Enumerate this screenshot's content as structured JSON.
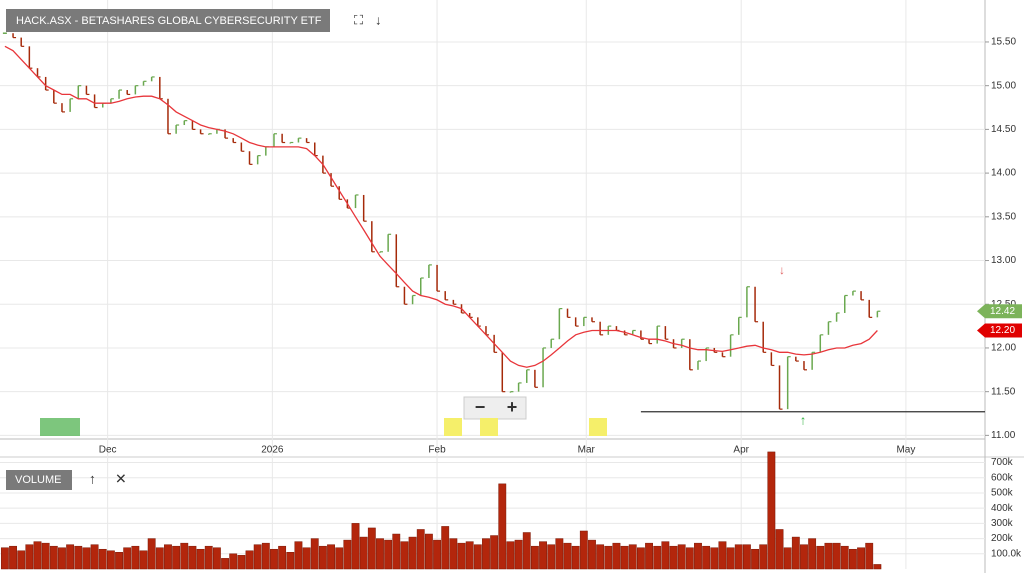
{
  "chart_data": [
    {
      "type": "price-bars",
      "title": "HACK.ASX - BETASHARES GLOBAL CYBERSECURITY ETF",
      "close": [
        15.6,
        15.55,
        15.45,
        15.2,
        15.1,
        14.95,
        14.8,
        14.7,
        14.85,
        15.0,
        14.9,
        14.75,
        14.8,
        14.85,
        14.95,
        14.9,
        15.0,
        15.05,
        15.1,
        14.85,
        14.45,
        14.55,
        14.6,
        14.5,
        14.45,
        14.45,
        14.5,
        14.4,
        14.35,
        14.25,
        14.1,
        14.2,
        14.3,
        14.45,
        14.35,
        14.35,
        14.4,
        14.35,
        14.2,
        14.0,
        13.85,
        13.7,
        13.6,
        13.75,
        13.45,
        13.1,
        13.1,
        13.3,
        12.7,
        12.5,
        12.6,
        12.8,
        12.95,
        12.65,
        12.55,
        12.5,
        12.4,
        12.35,
        12.25,
        12.15,
        11.95,
        11.5,
        11.5,
        11.6,
        11.75,
        11.55,
        12.0,
        12.1,
        12.45,
        12.35,
        12.25,
        12.35,
        12.3,
        12.15,
        12.25,
        12.2,
        12.15,
        12.2,
        12.1,
        12.05,
        12.25,
        12.1,
        12.0,
        12.1,
        11.75,
        11.85,
        12.0,
        11.95,
        11.9,
        12.15,
        12.35,
        12.7,
        12.3,
        11.95,
        11.8,
        11.3,
        11.9,
        11.85,
        11.75,
        11.95,
        12.15,
        12.3,
        12.4,
        12.6,
        12.65,
        12.55,
        12.35,
        12.42
      ],
      "up_color": "#6aa84f",
      "down_color": "#a52a0a",
      "ma": {
        "color": "#e8363b",
        "values": [
          15.45,
          15.4,
          15.3,
          15.2,
          15.1,
          15.0,
          14.95,
          14.9,
          14.9,
          14.85,
          14.85,
          14.8,
          14.8,
          14.8,
          14.82,
          14.85,
          14.87,
          14.88,
          14.88,
          14.85,
          14.78,
          14.7,
          14.65,
          14.6,
          14.55,
          14.52,
          14.5,
          14.48,
          14.45,
          14.4,
          14.35,
          14.32,
          14.3,
          14.3,
          14.3,
          14.3,
          14.3,
          14.28,
          14.2,
          14.1,
          13.95,
          13.8,
          13.65,
          13.5,
          13.35,
          13.2,
          13.05,
          12.95,
          12.85,
          12.75,
          12.65,
          12.6,
          12.58,
          12.55,
          12.5,
          12.48,
          12.45,
          12.35,
          12.25,
          12.15,
          12.05,
          11.95,
          11.85,
          11.8,
          11.78,
          11.8,
          11.85,
          11.92,
          12.0,
          12.08,
          12.15,
          12.18,
          12.2,
          12.2,
          12.2,
          12.2,
          12.18,
          12.15,
          12.12,
          12.1,
          12.1,
          12.08,
          12.05,
          12.03,
          12.0,
          11.98,
          11.98,
          11.97,
          11.96,
          11.98,
          12.0,
          12.02,
          12.03,
          12.0,
          11.98,
          11.95,
          11.95,
          11.93,
          11.92,
          11.93,
          11.95,
          11.98,
          12.0,
          12.0,
          12.03,
          12.05,
          12.1,
          12.2
        ]
      },
      "level": 11.27,
      "level_from": 78,
      "price_labels": [
        {
          "value": 12.42,
          "label": "12.42",
          "color": "#7cb35a"
        },
        {
          "value": 12.2,
          "label": "12.20",
          "color": "#e00000"
        }
      ],
      "xlim": [
        -0.6,
        120.2
      ],
      "xticks": [
        {
          "value": 12.6,
          "label": "Dec"
        },
        {
          "value": 32.8,
          "label": "2026"
        },
        {
          "value": 53,
          "label": "Feb"
        },
        {
          "value": 71.3,
          "label": "Mar"
        },
        {
          "value": 90.3,
          "label": "Apr"
        },
        {
          "value": 110.5,
          "label": "May"
        }
      ],
      "ylim": [
        10.97,
        15.98
      ],
      "yticks": [
        {
          "value": 11,
          "label": "11.00"
        },
        {
          "value": 11.5,
          "label": "11.50"
        },
        {
          "value": 12,
          "label": "12.00"
        },
        {
          "value": 12.5,
          "label": "12.50"
        },
        {
          "value": 13,
          "label": "13.00"
        },
        {
          "value": 13.5,
          "label": "13.50"
        },
        {
          "value": 14,
          "label": "14.00"
        },
        {
          "value": 14.5,
          "label": "14.50"
        },
        {
          "value": 15,
          "label": "15.00"
        },
        {
          "value": 15.5,
          "label": "15.50"
        }
      ],
      "grid": true
    },
    {
      "type": "bar",
      "title": "VOLUME",
      "color": "#b3260c",
      "values": [
        140000,
        150000,
        120000,
        160000,
        180000,
        170000,
        150000,
        140000,
        160000,
        150000,
        140000,
        160000,
        130000,
        120000,
        110000,
        140000,
        150000,
        120000,
        200000,
        140000,
        160000,
        150000,
        170000,
        150000,
        130000,
        150000,
        140000,
        70000,
        100000,
        90000,
        120000,
        160000,
        170000,
        130000,
        150000,
        110000,
        180000,
        140000,
        200000,
        150000,
        160000,
        140000,
        190000,
        300000,
        210000,
        270000,
        200000,
        190000,
        230000,
        180000,
        210000,
        260000,
        230000,
        190000,
        280000,
        200000,
        170000,
        180000,
        160000,
        200000,
        220000,
        560000,
        180000,
        190000,
        240000,
        150000,
        180000,
        160000,
        200000,
        170000,
        150000,
        250000,
        190000,
        160000,
        150000,
        170000,
        150000,
        160000,
        140000,
        170000,
        150000,
        180000,
        150000,
        160000,
        140000,
        170000,
        150000,
        140000,
        180000,
        140000,
        160000,
        160000,
        130000,
        160000,
        770000,
        260000,
        140000,
        210000,
        160000,
        200000,
        150000,
        170000,
        170000,
        150000,
        130000,
        140000,
        170000,
        30000
      ],
      "ylim": [
        0,
        730000
      ],
      "yticks": [
        {
          "value": 100000,
          "label": "100.0k"
        },
        {
          "value": 200000,
          "label": "200k"
        },
        {
          "value": 300000,
          "label": "300k"
        },
        {
          "value": 400000,
          "label": "400k"
        },
        {
          "value": 500000,
          "label": "500k"
        },
        {
          "value": 600000,
          "label": "600k"
        },
        {
          "value": 700000,
          "label": "700k"
        }
      ]
    }
  ]
}
